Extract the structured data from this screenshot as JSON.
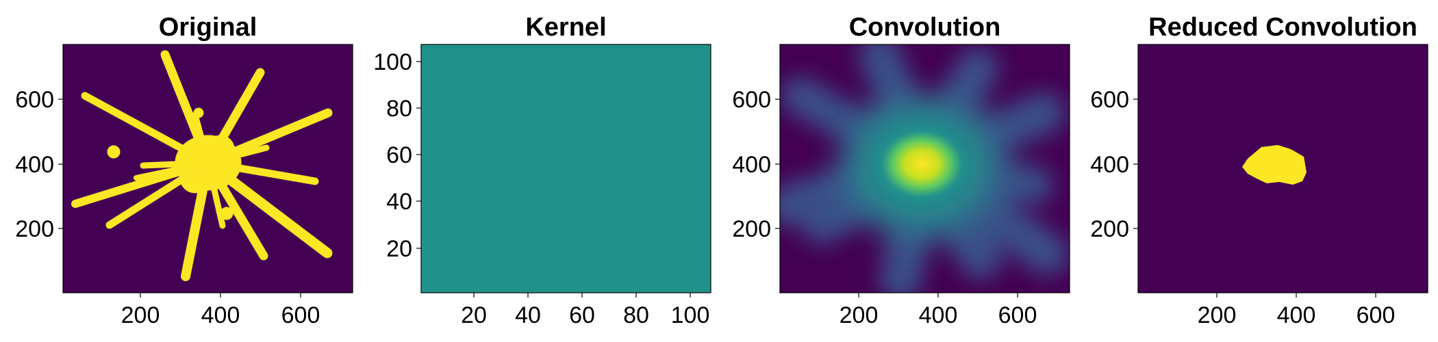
{
  "chart_data": [
    {
      "type": "heatmap",
      "title": "Original",
      "colormap": "viridis",
      "description": "binary splatter mask",
      "xlim": [
        0,
        730
      ],
      "ylim": [
        0,
        770
      ],
      "xticks": [
        200,
        400,
        600
      ],
      "yticks": [
        200,
        400,
        600
      ],
      "xtick_labels": [
        "200",
        "400",
        "600"
      ],
      "ytick_labels": [
        "200",
        "400",
        "600"
      ],
      "value_range": [
        0,
        1
      ],
      "blob_center": [
        340,
        400
      ]
    },
    {
      "type": "heatmap",
      "title": "Kernel",
      "colormap": "viridis",
      "description": "uniform kernel",
      "xlim": [
        0,
        107
      ],
      "ylim": [
        0,
        107
      ],
      "xticks": [
        20,
        40,
        60,
        80,
        100
      ],
      "yticks": [
        20,
        40,
        60,
        80,
        100
      ],
      "xtick_labels": [
        "20",
        "40",
        "60",
        "80",
        "100"
      ],
      "ytick_labels": [
        "20",
        "40",
        "60",
        "80",
        "100"
      ],
      "value": 0.5
    },
    {
      "type": "heatmap",
      "title": "Convolution",
      "colormap": "viridis",
      "description": "blurred splatter",
      "xlim": [
        0,
        730
      ],
      "ylim": [
        0,
        770
      ],
      "xticks": [
        200,
        400,
        600
      ],
      "yticks": [
        200,
        400,
        600
      ],
      "xtick_labels": [
        "200",
        "400",
        "600"
      ],
      "ytick_labels": [
        "200",
        "400",
        "600"
      ],
      "peak_center": [
        345,
        395
      ]
    },
    {
      "type": "heatmap",
      "title": "Reduced Convolution",
      "colormap": "viridis",
      "description": "thresholded convolution",
      "xlim": [
        0,
        730
      ],
      "ylim": [
        0,
        770
      ],
      "xticks": [
        200,
        400,
        600
      ],
      "yticks": [
        200,
        400,
        600
      ],
      "xtick_labels": [
        "200",
        "400",
        "600"
      ],
      "ytick_labels": [
        "200",
        "400",
        "600"
      ],
      "blob_center": [
        350,
        395
      ]
    }
  ],
  "colors": {
    "background": "#440154",
    "kernel": "#21918c",
    "high": "#fde725"
  }
}
